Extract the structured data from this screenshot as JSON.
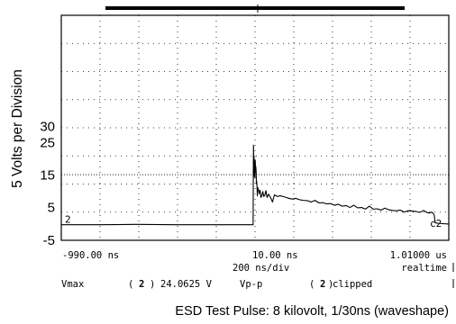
{
  "chart_data": {
    "type": "line",
    "title": "",
    "caption": "ESD Test Pulse:  8 kilovolt, 1/30ns (waveshape)",
    "xlabel": "",
    "ylabel": "5 Volts per Division",
    "ylim": [
      -5,
      30
    ],
    "xlim": [
      -990,
      1010
    ],
    "x_unit": "ns",
    "y_ticks": [
      "30",
      "25",
      "15",
      "5",
      "-5"
    ],
    "y_tick_values": [
      30,
      25,
      15,
      5,
      -5
    ],
    "x_tick_labels": [
      "-990.00 ns",
      "10.00 ns",
      "1.01000 us"
    ],
    "x_tick_values": [
      -990,
      10,
      1010
    ],
    "grid": true,
    "reference_level": 15,
    "timebase": "200  ns/div",
    "mode": "realtime",
    "channel_marker": "2",
    "trace_label": "c2",
    "measurements": [
      {
        "name": "Vmax",
        "channel": "2",
        "value": "24.0625 V"
      },
      {
        "name": "Vp-p",
        "channel": "2",
        "value": "clipped"
      }
    ],
    "series": [
      {
        "color": "#000000",
        "x": [
          -990,
          -800,
          -600,
          -400,
          -200,
          0,
          0.5,
          1,
          2,
          3,
          4,
          5,
          6,
          7,
          8,
          9,
          10,
          11,
          12,
          13,
          14,
          15,
          16,
          17,
          18,
          20,
          22,
          24,
          28,
          32,
          36,
          40,
          45,
          50,
          55,
          60,
          66,
          72,
          80,
          90,
          100,
          110,
          125,
          140,
          160,
          180,
          200,
          220,
          240,
          260,
          280,
          300,
          320,
          340,
          360,
          380,
          400,
          420,
          440,
          460,
          480,
          500,
          520,
          540,
          560,
          580,
          600,
          620,
          640,
          660,
          680,
          700,
          720,
          740,
          760,
          780,
          800,
          820,
          840,
          860,
          880,
          900,
          910,
          920,
          930,
          935,
          940,
          960,
          1010
        ],
        "y": [
          -0.4,
          -0.4,
          -0.3,
          -0.4,
          -0.4,
          -0.4,
          4.5,
          15.5,
          24.1,
          19.0,
          14.5,
          20.5,
          17.5,
          15.3,
          17.0,
          14.0,
          15.8,
          19.5,
          17.8,
          16.3,
          17.5,
          16.6,
          15.5,
          12.3,
          13.0,
          11.5,
          8.5,
          11.0,
          10.3,
          9.2,
          10.2,
          8.0,
          8.5,
          9.8,
          8.3,
          8.6,
          10.1,
          8.0,
          9.0,
          8.0,
          6.6,
          8.8,
          8.3,
          8.5,
          8.2,
          7.8,
          7.5,
          7.7,
          7.3,
          7.1,
          7.0,
          6.6,
          7.1,
          6.3,
          6.4,
          6.0,
          6.1,
          5.6,
          5.9,
          5.3,
          5.5,
          4.9,
          5.6,
          4.8,
          4.9,
          4.4,
          5.3,
          4.4,
          4.5,
          4.1,
          4.7,
          4.2,
          4.0,
          3.9,
          4.1,
          3.5,
          3.9,
          3.8,
          3.7,
          3.4,
          4.0,
          3.3,
          3.2,
          3.5,
          3.1,
          2.5,
          0.2,
          0.0,
          -0.2
        ]
      }
    ]
  }
}
